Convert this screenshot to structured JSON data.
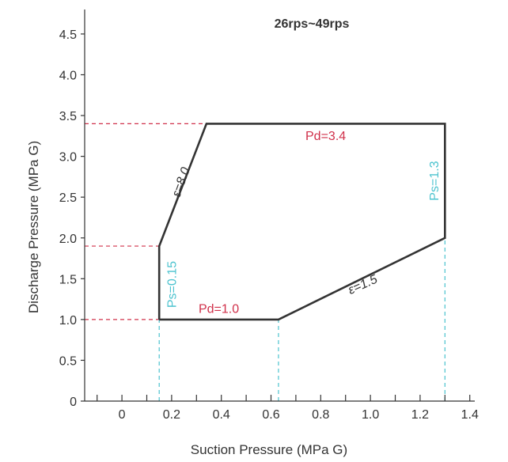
{
  "chart_data": {
    "type": "line",
    "title": "26rps~49rps",
    "xlabel": "Suction Pressure (MPa G)",
    "ylabel": "Discharge Pressure (MPa G)",
    "xlim": [
      -0.15,
      1.42
    ],
    "ylim": [
      0,
      4.8
    ],
    "x_ticks": [
      0,
      0.2,
      0.4,
      0.6,
      0.8,
      1.0,
      1.2,
      1.4
    ],
    "x_tick_labels": [
      "0",
      "0.2",
      "0.4",
      "0.6",
      "0.8",
      "1.0",
      "1.2",
      "1.4"
    ],
    "x_minor_ticks": [
      -0.1,
      0.1,
      0.3,
      0.5,
      0.7,
      0.9,
      1.1,
      1.3
    ],
    "y_ticks": [
      0,
      0.5,
      1.0,
      1.5,
      2.0,
      2.5,
      3.0,
      3.5,
      4.0,
      4.5
    ],
    "y_tick_labels": [
      "0",
      "0.5",
      "1.0",
      "1.5",
      "2.0",
      "2.5",
      "3.0",
      "3.5",
      "4.0",
      "4.5"
    ],
    "grid": false,
    "envelope": {
      "name": "",
      "points": [
        [
          0.15,
          1.0
        ],
        [
          0.63,
          1.0
        ],
        [
          1.3,
          2.0
        ],
        [
          1.3,
          3.4
        ],
        [
          0.34,
          3.4
        ],
        [
          0.15,
          1.9
        ],
        [
          0.15,
          1.0
        ]
      ],
      "color": "#333333"
    },
    "reference_lines": [
      {
        "orientation": "horizontal",
        "value": 3.4,
        "from_x": -0.15,
        "to_x": 0.34,
        "color": "#d0304a"
      },
      {
        "orientation": "horizontal",
        "value": 1.9,
        "from_x": -0.15,
        "to_x": 0.15,
        "color": "#d0304a"
      },
      {
        "orientation": "horizontal",
        "value": 1.0,
        "from_x": -0.15,
        "to_x": 0.15,
        "color": "#d0304a"
      },
      {
        "orientation": "vertical",
        "value": 0.15,
        "from_y": 0,
        "to_y": 1.0,
        "color": "#4cc3cf"
      },
      {
        "orientation": "vertical",
        "value": 0.63,
        "from_y": 0,
        "to_y": 1.0,
        "color": "#4cc3cf"
      },
      {
        "orientation": "vertical",
        "value": 1.3,
        "from_y": 0,
        "to_y": 2.0,
        "color": "#4cc3cf"
      }
    ],
    "annotations": [
      {
        "text": "Pd=3.4",
        "x": 0.82,
        "y": 3.24,
        "rotate": 0,
        "color": "#d0304a",
        "italic": false
      },
      {
        "text": "Pd=1.0",
        "x": 0.39,
        "y": 1.12,
        "rotate": 0,
        "color": "#d0304a",
        "italic": false
      },
      {
        "text": "Ps=1.3",
        "x": 1.26,
        "y": 2.7,
        "rotate": -90,
        "color": "#4cc3cf",
        "italic": false
      },
      {
        "text": "Ps=0.15",
        "x": 0.205,
        "y": 1.43,
        "rotate": -90,
        "color": "#4cc3cf",
        "italic": false
      },
      {
        "text": "ε=8.0",
        "x": 0.24,
        "y": 2.68,
        "rotate": -70,
        "color": "#333333",
        "italic": true
      },
      {
        "text": "ε=1.5",
        "x": 0.97,
        "y": 1.42,
        "rotate": -24,
        "color": "#333333",
        "italic": true
      }
    ]
  }
}
